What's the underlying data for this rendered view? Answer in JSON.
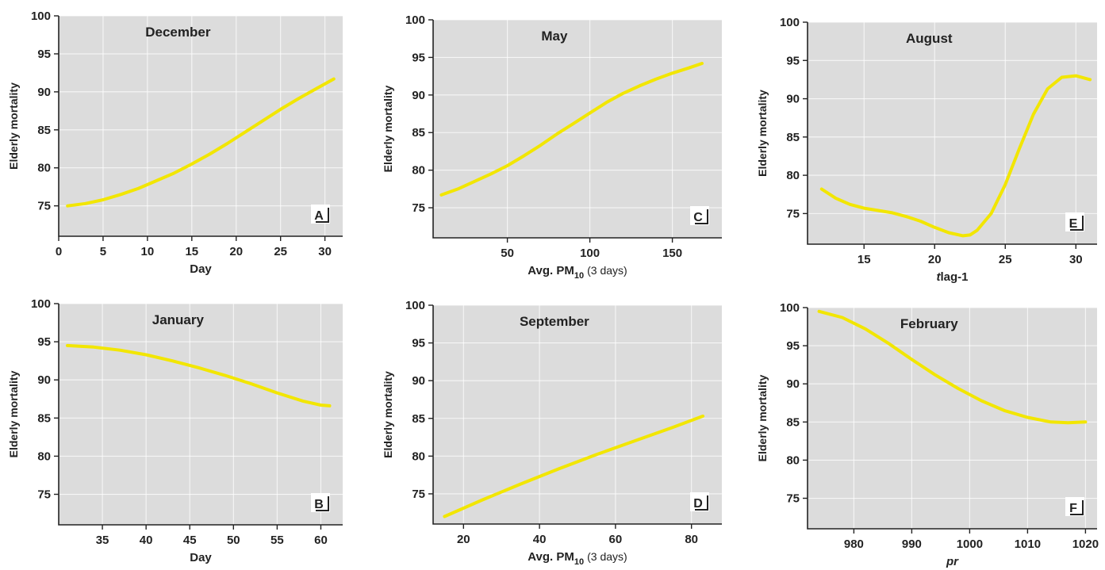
{
  "chart_data": [
    {
      "id": "A",
      "type": "line",
      "title": "December",
      "xlabel": "Day",
      "xlabel_sub": "",
      "xlabel_suffix": "",
      "ylabel": "Elderly mortality",
      "xlim": [
        0,
        32
      ],
      "ylim": [
        71,
        100
      ],
      "xticks": [
        0,
        5,
        10,
        15,
        20,
        25,
        30
      ],
      "yticks": [
        75,
        80,
        85,
        90,
        95,
        100
      ],
      "x": [
        1,
        3,
        5,
        7,
        9,
        11,
        13,
        15,
        17,
        19,
        21,
        23,
        25,
        27,
        29,
        31
      ],
      "y": [
        75.0,
        75.3,
        75.8,
        76.5,
        77.3,
        78.3,
        79.3,
        80.5,
        81.8,
        83.2,
        84.7,
        86.2,
        87.7,
        89.1,
        90.4,
        91.7
      ]
    },
    {
      "id": "C",
      "type": "line",
      "title": "May",
      "xlabel": "Avg. PM",
      "xlabel_sub": "10",
      "xlabel_suffix": "(3 days)",
      "ylabel": "Elderly mortality",
      "xlim": [
        5,
        180
      ],
      "ylim": [
        71,
        100
      ],
      "xticks": [
        50,
        100,
        150
      ],
      "yticks": [
        75,
        80,
        85,
        90,
        95,
        100
      ],
      "x": [
        10,
        20,
        30,
        40,
        50,
        60,
        70,
        80,
        90,
        100,
        110,
        120,
        130,
        140,
        150,
        160,
        168
      ],
      "y": [
        76.7,
        77.5,
        78.5,
        79.5,
        80.6,
        81.9,
        83.3,
        84.8,
        86.2,
        87.6,
        89.0,
        90.2,
        91.2,
        92.1,
        92.9,
        93.6,
        94.2
      ]
    },
    {
      "id": "E",
      "type": "line",
      "title": "August",
      "xlabel": "t",
      "xlabel_sub": "",
      "xlabel_suffix": "lag-1",
      "ylabel": "Elderly mortality",
      "xlim": [
        11,
        31.5
      ],
      "ylim": [
        71,
        100
      ],
      "xticks": [
        15,
        20,
        25,
        30
      ],
      "yticks": [
        75,
        80,
        85,
        90,
        95,
        100
      ],
      "x": [
        12,
        13,
        14,
        15,
        16,
        17,
        18,
        19,
        20,
        21,
        22,
        22.5,
        23,
        24,
        25,
        26,
        27,
        28,
        29,
        30,
        31
      ],
      "y": [
        78.2,
        77.0,
        76.2,
        75.7,
        75.4,
        75.1,
        74.6,
        74.0,
        73.2,
        72.5,
        72.1,
        72.2,
        72.8,
        75.0,
        78.8,
        83.5,
        88.0,
        91.3,
        92.8,
        93.0,
        92.5
      ]
    },
    {
      "id": "B",
      "type": "line",
      "title": "January",
      "xlabel": "Day",
      "xlabel_sub": "",
      "xlabel_suffix": "",
      "ylabel": "Elderly mortality",
      "xlim": [
        30,
        62.5
      ],
      "ylim": [
        71,
        100
      ],
      "xticks": [
        35,
        40,
        45,
        50,
        55,
        60
      ],
      "yticks": [
        75,
        80,
        85,
        90,
        95,
        100
      ],
      "x": [
        31,
        34,
        37,
        40,
        43,
        46,
        49,
        52,
        55,
        58,
        60,
        61
      ],
      "y": [
        94.5,
        94.3,
        93.9,
        93.3,
        92.5,
        91.6,
        90.6,
        89.5,
        88.3,
        87.2,
        86.7,
        86.6
      ]
    },
    {
      "id": "D",
      "type": "line",
      "title": "September",
      "xlabel": "Avg. PM",
      "xlabel_sub": "10",
      "xlabel_suffix": "(3 days)",
      "ylabel": "Elderly mortality",
      "xlim": [
        12,
        88
      ],
      "ylim": [
        71,
        100
      ],
      "xticks": [
        20,
        40,
        60,
        80
      ],
      "yticks": [
        75,
        80,
        85,
        90,
        95,
        100
      ],
      "x": [
        15,
        25,
        35,
        45,
        55,
        65,
        75,
        83
      ],
      "y": [
        72.0,
        74.2,
        76.3,
        78.3,
        80.2,
        82.0,
        83.8,
        85.3
      ]
    },
    {
      "id": "F",
      "type": "line",
      "title": "February",
      "xlabel": "pr",
      "xlabel_sub": "",
      "xlabel_suffix": "",
      "ylabel": "Elderly mortality",
      "xlim": [
        972,
        1022
      ],
      "ylim": [
        71,
        100
      ],
      "xticks": [
        980,
        990,
        1000,
        1010,
        1020
      ],
      "yticks": [
        75,
        80,
        85,
        90,
        95,
        100
      ],
      "x": [
        974,
        978,
        982,
        986,
        990,
        994,
        998,
        1002,
        1006,
        1010,
        1014,
        1017,
        1020
      ],
      "y": [
        99.5,
        98.7,
        97.2,
        95.3,
        93.2,
        91.2,
        89.4,
        87.8,
        86.5,
        85.6,
        85.0,
        84.9,
        85.0
      ]
    }
  ]
}
